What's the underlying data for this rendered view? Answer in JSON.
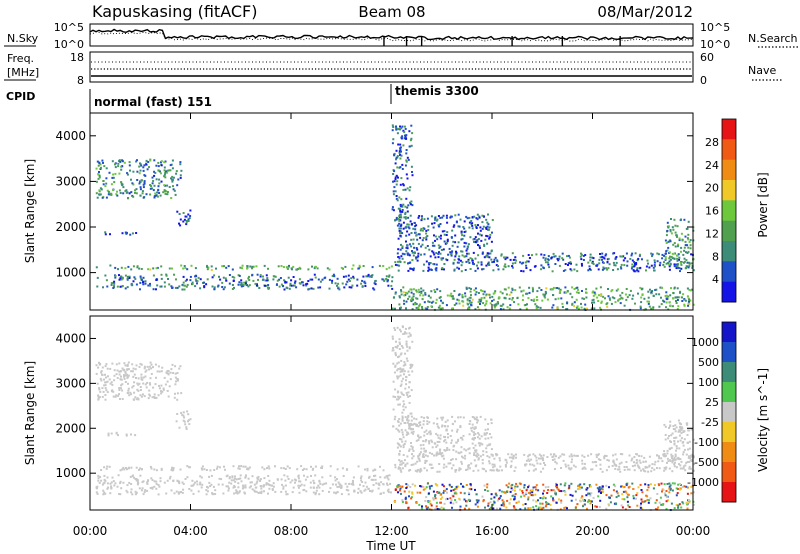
{
  "header": {
    "station": "Kapuskasing (fitACF)",
    "beam": "Beam 08",
    "date": "08/Mar/2012"
  },
  "noise_panel": {
    "left_label": "N.Sky",
    "right_label": "N.Search",
    "left_ticks": [
      "10^5",
      "10^0"
    ],
    "right_ticks": [
      "10^5",
      "10^0"
    ]
  },
  "freq_panel": {
    "left_label_1": "Freq.",
    "left_label_2": "[MHz]",
    "right_label": "Nave",
    "left_ticks": [
      "18",
      "8"
    ],
    "right_ticks": [
      "60",
      "0"
    ]
  },
  "cpid": {
    "label": "CPID",
    "segments": [
      {
        "name": "normal (fast) 151",
        "start_hour": 0,
        "end_hour": 12
      },
      {
        "name": "themis 3300",
        "start_hour": 12,
        "end_hour": 24
      }
    ]
  },
  "colors": {
    "power_scale": [
      "#1414e6",
      "#1e50c8",
      "#3c8c78",
      "#50a050",
      "#6ec83c",
      "#f0c828",
      "#f08c14",
      "#f05a14",
      "#e61414"
    ],
    "velocity_scale": [
      "#1414c8",
      "#1e50c8",
      "#3c8c78",
      "#50c850",
      "#c8c8c8",
      "#f0c828",
      "#f08c14",
      "#f05a14",
      "#e61414"
    ]
  },
  "chart_data": [
    {
      "type": "heatmap",
      "title": "Power",
      "xlabel": "Time UT",
      "ylabel": "Slant Range [km]",
      "xlim": [
        0,
        24
      ],
      "ylim": [
        180,
        4500
      ],
      "x_ticks": [
        "00:00",
        "04:00",
        "08:00",
        "12:00",
        "16:00",
        "20:00",
        "00:00"
      ],
      "y_ticks": [
        1000,
        2000,
        3000,
        4000
      ],
      "colorbar": {
        "label": "Power [dB]",
        "ticks": [
          "28",
          "24",
          "20",
          "16",
          "12",
          "8",
          "4"
        ],
        "range": [
          0,
          30
        ]
      },
      "regions": [
        {
          "t0": 0.2,
          "t1": 3.6,
          "r0": 2650,
          "r1": 3500,
          "value": 9
        },
        {
          "t0": 0.2,
          "t1": 12.0,
          "r0": 1080,
          "r1": 1180,
          "value": 11
        },
        {
          "t0": 0.2,
          "t1": 12.0,
          "r0": 650,
          "r1": 980,
          "value": 7
        },
        {
          "t0": 0.5,
          "t1": 1.8,
          "r0": 1850,
          "r1": 1950,
          "value": 5
        },
        {
          "t0": 3.4,
          "t1": 4.0,
          "r0": 2000,
          "r1": 2400,
          "value": 6
        },
        {
          "t0": 12.1,
          "t1": 24.0,
          "r0": 1050,
          "r1": 1450,
          "value": 6
        },
        {
          "t0": 12.2,
          "t1": 16.0,
          "r0": 1400,
          "r1": 2300,
          "value": 5
        },
        {
          "t0": 12.0,
          "t1": 24.0,
          "r0": 200,
          "r1": 700,
          "value": 11
        },
        {
          "t0": 12.0,
          "t1": 12.8,
          "r0": 2000,
          "r1": 4300,
          "value": 6
        },
        {
          "t0": 22.8,
          "t1": 24.0,
          "r0": 1100,
          "r1": 2200,
          "value": 10
        }
      ]
    },
    {
      "type": "heatmap",
      "title": "Velocity",
      "xlabel": "Time UT",
      "ylabel": "Slant Range [km]",
      "xlim": [
        0,
        24
      ],
      "ylim": [
        180,
        4500
      ],
      "x_ticks": [
        "00:00",
        "04:00",
        "08:00",
        "12:00",
        "16:00",
        "20:00",
        "00:00"
      ],
      "y_ticks": [
        1000,
        2000,
        3000,
        4000
      ],
      "colorbar": {
        "label": "Velocity [m s^-1]",
        "ticks": [
          "1000",
          "500",
          "100",
          "25",
          "-25",
          "-100",
          "-500",
          "-1000"
        ],
        "range": [
          -1200,
          1200
        ]
      },
      "regions": [
        {
          "t0": 0.2,
          "t1": 3.6,
          "r0": 2650,
          "r1": 3500,
          "value": 0
        },
        {
          "t0": 0.2,
          "t1": 12.0,
          "r0": 1080,
          "r1": 1180,
          "value": 0
        },
        {
          "t0": 0.2,
          "t1": 12.0,
          "r0": 550,
          "r1": 980,
          "value": -20
        },
        {
          "t0": 0.5,
          "t1": 1.8,
          "r0": 1850,
          "r1": 1950,
          "value": 0
        },
        {
          "t0": 3.4,
          "t1": 4.0,
          "r0": 2000,
          "r1": 2400,
          "value": 0
        },
        {
          "t0": 12.1,
          "t1": 24.0,
          "r0": 1050,
          "r1": 1450,
          "value": 0
        },
        {
          "t0": 12.2,
          "t1": 16.0,
          "r0": 1400,
          "r1": 2300,
          "value": 0
        },
        {
          "t0": 12.0,
          "t1": 24.0,
          "r0": 200,
          "r1": 800,
          "value": -200
        },
        {
          "t0": 12.0,
          "t1": 12.8,
          "r0": 2000,
          "r1": 4300,
          "value": 0
        },
        {
          "t0": 22.8,
          "t1": 24.0,
          "r0": 1100,
          "r1": 2200,
          "value": 0
        }
      ]
    }
  ]
}
